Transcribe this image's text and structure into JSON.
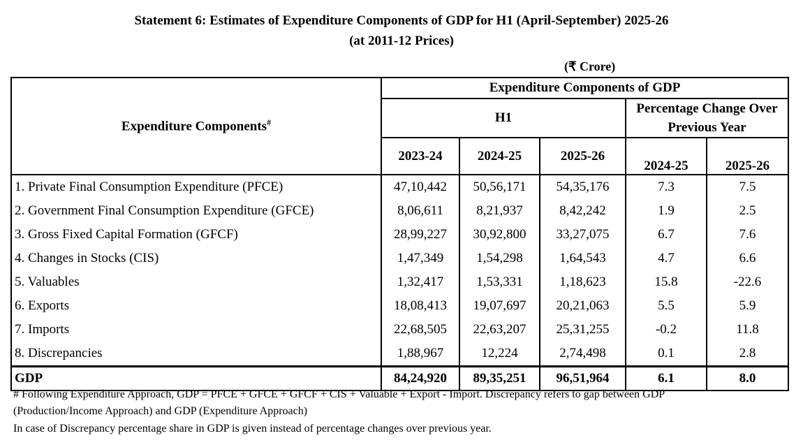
{
  "title_line1": "Statement 6: Estimates of Expenditure Components of GDP for H1 (April-September) 2025-26",
  "title_line2": "(at 2011-12 Prices)",
  "unit": "(₹ Crore)",
  "header": {
    "row_header": "Expenditure Components",
    "row_header_mark": "#",
    "group": "Expenditure Components of GDP",
    "h1": "H1",
    "pct": "Percentage Change Over Previous Year",
    "years": [
      "2023-24",
      "2024-25",
      "2025-26"
    ],
    "pct_years": [
      "2024-25",
      "2025-26"
    ]
  },
  "rows": [
    {
      "label": "1. Private Final Consumption Expenditure (PFCE)",
      "v": [
        "47,10,442",
        "50,56,171",
        "54,35,176",
        "7.3",
        "7.5"
      ]
    },
    {
      "label": "2. Government Final Consumption Expenditure (GFCE)",
      "v": [
        "8,06,611",
        "8,21,937",
        "8,42,242",
        "1.9",
        "2.5"
      ]
    },
    {
      "label": "3. Gross Fixed Capital Formation (GFCF)",
      "v": [
        "28,99,227",
        "30,92,800",
        "33,27,075",
        "6.7",
        "7.6"
      ]
    },
    {
      "label": "4. Changes in Stocks (CIS)",
      "v": [
        "1,47,349",
        "1,54,298",
        "1,64,543",
        "4.7",
        "6.6"
      ]
    },
    {
      "label": "5. Valuables",
      "v": [
        "1,32,417",
        "1,53,331",
        "1,18,623",
        "15.8",
        "-22.6"
      ]
    },
    {
      "label": "6. Exports",
      "v": [
        "18,08,413",
        "19,07,697",
        "20,21,063",
        "5.5",
        "5.9"
      ]
    },
    {
      "label": "7. Imports",
      "v": [
        "22,68,505",
        "22,63,207",
        "25,31,255",
        "-0.2",
        "11.8"
      ]
    },
    {
      "label": "8. Discrepancies",
      "v": [
        "1,88,967",
        "12,224",
        "2,74,498",
        "0.1",
        "2.8"
      ]
    }
  ],
  "total": {
    "label": "GDP",
    "v": [
      "84,24,920",
      "89,35,251",
      "96,51,964",
      "6.1",
      "8.0"
    ]
  },
  "footnotes": [
    "# Following Expenditure Approach, GDP = PFCE + GFCE + GFCF + CIS + Valuable + Export - Import. Discrepancy refers to gap between GDP",
    "(Production/Income Approach) and GDP (Expenditure Approach)",
    "In case of Discrepancy percentage share in GDP is given instead of percentage changes over previous year."
  ]
}
